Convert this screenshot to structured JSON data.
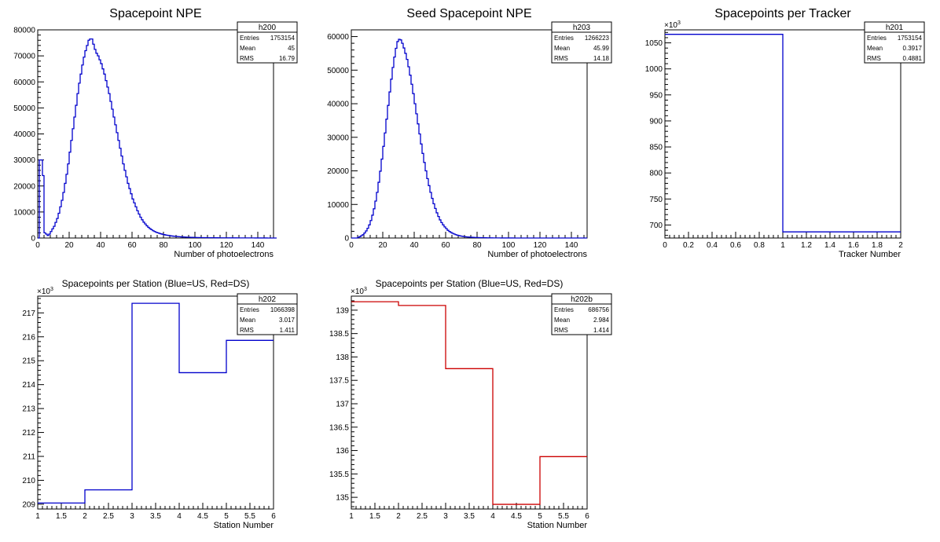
{
  "chart_data": [
    {
      "type": "histogram",
      "title": "Spacepoint NPE",
      "xlabel": "Number of photoelectrons",
      "ylabel": "",
      "xlim": [
        0,
        150
      ],
      "ylim": [
        0,
        80000
      ],
      "xticks": [
        0,
        20,
        40,
        60,
        80,
        100,
        120,
        140
      ],
      "xtick_labels": [
        "0",
        "20",
        "40",
        "60",
        "80",
        "100",
        "120",
        "140"
      ],
      "yticks": [
        0,
        10000,
        20000,
        30000,
        40000,
        50000,
        60000,
        70000,
        80000
      ],
      "ytick_labels": [
        "0",
        "10000",
        "20000",
        "30000",
        "40000",
        "50000",
        "60000",
        "70000",
        "80000"
      ],
      "y_exponent": "",
      "color": "#0000cc",
      "stats": {
        "name": "h200",
        "rows": [
          [
            "Entries",
            "1753154"
          ],
          [
            "Mean",
            "45"
          ],
          [
            "RMS",
            "16.79"
          ]
        ]
      },
      "bin_width": 1,
      "x_start": 0,
      "values": [
        0,
        30000,
        30000,
        24000,
        2000,
        1500,
        1000,
        1500,
        2500,
        3500,
        4500,
        6000,
        7500,
        9500,
        12000,
        14500,
        17500,
        21000,
        24500,
        28500,
        33000,
        37500,
        42000,
        46500,
        51000,
        55500,
        59500,
        63000,
        66500,
        69500,
        72000,
        74000,
        76000,
        76500,
        76500,
        74500,
        72500,
        71000,
        70000,
        68500,
        67000,
        65000,
        63000,
        60500,
        58000,
        55500,
        52500,
        49500,
        46500,
        43500,
        40500,
        37500,
        34500,
        31500,
        28500,
        26000,
        23500,
        21000,
        19000,
        17000,
        15000,
        13500,
        12000,
        10500,
        9200,
        8000,
        7000,
        6100,
        5400,
        4700,
        4100,
        3600,
        3200,
        2800,
        2500,
        2200,
        2000,
        1800,
        1600,
        1450,
        1300,
        1150,
        1050,
        950,
        850,
        780,
        700,
        640,
        580,
        530,
        480,
        440,
        400,
        370,
        340,
        310,
        290,
        270,
        250,
        230,
        215,
        200,
        185,
        170,
        160,
        150,
        140,
        130,
        120,
        115,
        110,
        105,
        100,
        95,
        90,
        85,
        80,
        75,
        72,
        68,
        65,
        62,
        60,
        57,
        55,
        52,
        50,
        48,
        46,
        44,
        42,
        40,
        38,
        36,
        34,
        32,
        30,
        28,
        26,
        24,
        22,
        20,
        18,
        16,
        14,
        12,
        10,
        8,
        6,
        4,
        2,
        0
      ]
    },
    {
      "type": "histogram",
      "title": "Seed Spacepoint NPE",
      "xlabel": "Number of photoelectrons",
      "ylabel": "",
      "xlim": [
        0,
        150
      ],
      "ylim": [
        0,
        62000
      ],
      "xticks": [
        0,
        20,
        40,
        60,
        80,
        100,
        120,
        140
      ],
      "xtick_labels": [
        "0",
        "20",
        "40",
        "60",
        "80",
        "100",
        "120",
        "140"
      ],
      "yticks": [
        0,
        10000,
        20000,
        30000,
        40000,
        50000,
        60000
      ],
      "ytick_labels": [
        "0",
        "10000",
        "20000",
        "30000",
        "40000",
        "50000",
        "60000"
      ],
      "y_exponent": "",
      "color": "#0000cc",
      "stats": {
        "name": "h203",
        "rows": [
          [
            "Entries",
            "1266223"
          ],
          [
            "Mean",
            "45.99"
          ],
          [
            "RMS",
            "14.18"
          ]
        ]
      },
      "bin_width": 1,
      "x_start": 0,
      "values": [
        0,
        0,
        0,
        0,
        200,
        400,
        700,
        1000,
        1500,
        2100,
        2900,
        3900,
        5200,
        6800,
        8700,
        11000,
        13600,
        16600,
        19900,
        23500,
        27300,
        31300,
        35400,
        39500,
        43500,
        47300,
        50800,
        53900,
        56500,
        58500,
        59200,
        59000,
        58000,
        56600,
        55000,
        53200,
        51000,
        48500,
        45800,
        43000,
        40000,
        37000,
        34000,
        31000,
        28000,
        25200,
        22500,
        20000,
        17700,
        15600,
        13600,
        11800,
        10200,
        8800,
        7500,
        6400,
        5400,
        4600,
        3900,
        3300,
        2800,
        2300,
        1950,
        1650,
        1400,
        1200,
        1000,
        850,
        720,
        610,
        520,
        440,
        380,
        330,
        290,
        250,
        220,
        190,
        170,
        150,
        130,
        115,
        100,
        90,
        80,
        70,
        62,
        55,
        48,
        42,
        37,
        33,
        29,
        26,
        23,
        20,
        18,
        16,
        14,
        12,
        11,
        10,
        9,
        8,
        7,
        6,
        5,
        5,
        4,
        4,
        3,
        3,
        3,
        2,
        2,
        2,
        2,
        1,
        1,
        1,
        1,
        1,
        1,
        1,
        1,
        1,
        1,
        1,
        1,
        1,
        1,
        1,
        1,
        1,
        1,
        1,
        1,
        1,
        1,
        1,
        1,
        1,
        1,
        0,
        0,
        0,
        0,
        0,
        0,
        0
      ]
    },
    {
      "type": "histogram",
      "title": "Spacepoints per Tracker",
      "xlabel": "Tracker Number",
      "ylabel": "",
      "xlim": [
        0,
        2
      ],
      "ylim": [
        675,
        1075
      ],
      "xticks": [
        0,
        0.2,
        0.4,
        0.6,
        0.8,
        1,
        1.2,
        1.4,
        1.6,
        1.8,
        2
      ],
      "xtick_labels": [
        "0",
        "0.2",
        "0.4",
        "0.6",
        "0.8",
        "1",
        "1.2",
        "1.4",
        "1.6",
        "1.8",
        "2"
      ],
      "yticks": [
        700,
        750,
        800,
        850,
        900,
        950,
        1000,
        1050
      ],
      "ytick_labels": [
        "700",
        "750",
        "800",
        "850",
        "900",
        "950",
        "1000",
        "1050"
      ],
      "y_exponent": "×10",
      "y_exponent_power": "3",
      "color": "#0000cc",
      "stats": {
        "name": "h201",
        "rows": [
          [
            "Entries",
            "1753154"
          ],
          [
            "Mean",
            "0.3917"
          ],
          [
            "RMS",
            "0.4881"
          ]
        ]
      },
      "bin_width": 1,
      "x_start": 0,
      "values": [
        1066.4,
        686.8
      ]
    },
    {
      "type": "histogram",
      "title": "Spacepoints per Station (Blue=US, Red=DS)",
      "xlabel": "Station Number",
      "ylabel": "",
      "xlim": [
        1,
        6
      ],
      "ylim": [
        208.8,
        217.7
      ],
      "xticks": [
        1,
        1.5,
        2,
        2.5,
        3,
        3.5,
        4,
        4.5,
        5,
        5.5,
        6
      ],
      "xtick_labels": [
        "1",
        "1.5",
        "2",
        "2.5",
        "3",
        "3.5",
        "4",
        "4.5",
        "5",
        "5.5",
        "6"
      ],
      "yticks": [
        209,
        210,
        211,
        212,
        213,
        214,
        215,
        216,
        217
      ],
      "ytick_labels": [
        "209",
        "210",
        "211",
        "212",
        "213",
        "214",
        "215",
        "216",
        "217"
      ],
      "y_exponent": "×10",
      "y_exponent_power": "3",
      "color": "#0000cc",
      "stats": {
        "name": "h202",
        "rows": [
          [
            "Entries",
            "1066398"
          ],
          [
            "Mean",
            "3.017"
          ],
          [
            "RMS",
            "1.411"
          ]
        ]
      },
      "bin_width": 1,
      "x_start": 1,
      "values": [
        209.05,
        209.6,
        217.4,
        214.5,
        215.85
      ]
    },
    {
      "type": "histogram",
      "title": "Spacepoints per Station (Blue=US, Red=DS)",
      "xlabel": "Station Number",
      "ylabel": "",
      "xlim": [
        1,
        6
      ],
      "ylim": [
        134.75,
        139.3
      ],
      "xticks": [
        1,
        1.5,
        2,
        2.5,
        3,
        3.5,
        4,
        4.5,
        5,
        5.5,
        6
      ],
      "xtick_labels": [
        "1",
        "1.5",
        "2",
        "2.5",
        "3",
        "3.5",
        "4",
        "4.5",
        "5",
        "5.5",
        "6"
      ],
      "yticks": [
        135,
        135.5,
        136,
        136.5,
        137,
        137.5,
        138,
        138.5,
        139
      ],
      "ytick_labels": [
        "135",
        "135.5",
        "136",
        "136.5",
        "137",
        "137.5",
        "138",
        "138.5",
        "139"
      ],
      "y_exponent": "×10",
      "y_exponent_power": "3",
      "color": "#cc0000",
      "stats": {
        "name": "h202b",
        "rows": [
          [
            "Entries",
            "686756"
          ],
          [
            "Mean",
            "2.984"
          ],
          [
            "RMS",
            "1.414"
          ]
        ]
      },
      "bin_width": 1,
      "x_start": 1,
      "values": [
        139.18,
        139.1,
        137.75,
        134.85,
        135.87
      ]
    }
  ]
}
